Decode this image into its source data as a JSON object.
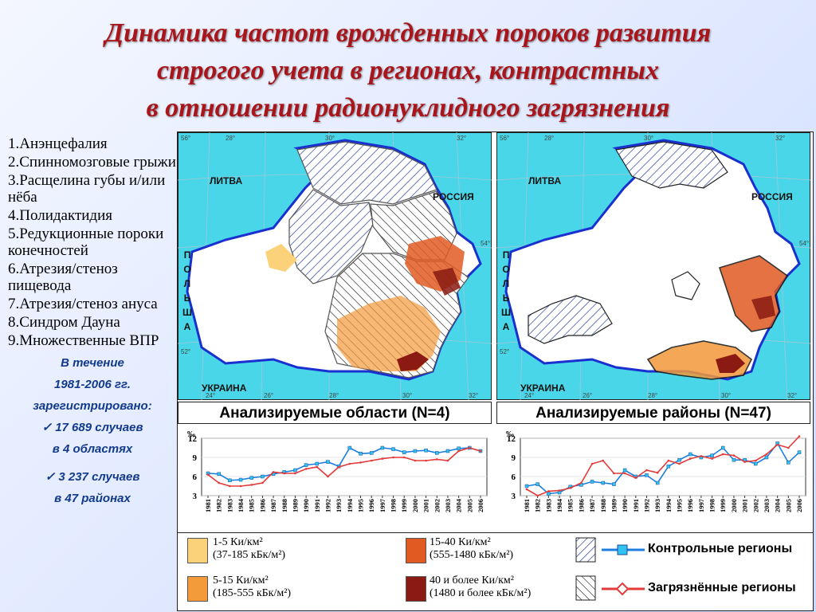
{
  "title": {
    "line1": "Динамика частот врожденных пороков развития",
    "line2": "строгого учета в регионах, контрастных",
    "line3": "в отношении радионуклидного загрязнения"
  },
  "defects": [
    "1.Анэнцефалия",
    "2.Спинномозговые грыжи",
    "3.Расщелина губы и/или нёба",
    "4.Полидактидия",
    "5.Редукционные пороки конечностей",
    "6.Атрезия/стеноз пищевода",
    "7.Атрезия/стеноз ануса",
    "8.Синдром Дауна",
    "9.Множественные ВПР"
  ],
  "notes": {
    "period1": "В течение",
    "period2": "1981-2006 гг.",
    "registered": "зарегистрировано:",
    "cases1": "✓ 17 689 случаев",
    "regions1": "в 4 областях",
    "cases2": "✓ 3 237 случаев",
    "regions2": "в 47 районах"
  },
  "maps": {
    "left_caption": "Анализируемые области (N=4)",
    "right_caption": "Анализируемые районы (N=47)",
    "label_lithuania": "ЛИТВА",
    "label_russia": "РОССИЯ",
    "label_poland": [
      "П",
      "О",
      "Л",
      "Ь",
      "Ш",
      "А"
    ],
    "label_ukraine": "УКРАИНА",
    "lon_labels": [
      "24°",
      "26°",
      "28°",
      "30°",
      "32°"
    ],
    "lat_labels": [
      "54°",
      "52°"
    ],
    "top_labels": [
      "56°",
      "28°",
      "30°",
      "32°"
    ]
  },
  "legend": {
    "c1a": "1-5 Ки/км²",
    "c1b": "(37-185 кБк/м²)",
    "c2a": "5-15 Ки/км²",
    "c2b": "(185-555 кБк/м²)",
    "c3a": "15-40 Ки/км²",
    "c3b": "(555-1480 кБк/м²)",
    "c4a": "40 и более Ки/км²",
    "c4b": "(1480 и более кБк/м²)",
    "control": "Контрольные регионы",
    "polluted": "Загрязнённые регионы",
    "colors": {
      "c1": "#fbd27a",
      "c2": "#f39a3a",
      "c3": "#e05a22",
      "c4": "#8a1a12",
      "control_line": "#1c7fe0",
      "control_marker": "#32c2f0",
      "polluted_line": "#e33a3a"
    }
  },
  "chart_data": [
    {
      "type": "line",
      "title": "",
      "ylabel": "‰",
      "xlabel": "",
      "ylim": [
        3,
        12
      ],
      "yticks": [
        3,
        6,
        9,
        12
      ],
      "x": [
        1981,
        1982,
        1983,
        1984,
        1985,
        1986,
        1987,
        1988,
        1989,
        1990,
        1991,
        1992,
        1993,
        1994,
        1995,
        1996,
        1997,
        1998,
        1999,
        2000,
        2001,
        2002,
        2003,
        2004,
        2005,
        2006
      ],
      "series": [
        {
          "name": "Контрольные регионы",
          "color": "#1c7fe0",
          "values": [
            6.5,
            6.4,
            5.4,
            5.5,
            5.8,
            6.0,
            6.4,
            6.7,
            7.0,
            7.8,
            8.0,
            8.3,
            7.6,
            10.5,
            9.6,
            9.7,
            10.5,
            10.3,
            9.8,
            10.0,
            10.1,
            9.7,
            10.0,
            10.4,
            10.5,
            10.0
          ]
        },
        {
          "name": "Загрязнённые регионы",
          "color": "#e33a3a",
          "values": [
            6.3,
            5.0,
            4.5,
            4.5,
            4.7,
            5.0,
            6.7,
            6.5,
            6.5,
            7.2,
            7.5,
            6.0,
            7.5,
            8.0,
            8.2,
            8.5,
            8.8,
            9.0,
            9.0,
            8.5,
            8.5,
            8.7,
            8.5,
            10.0,
            10.5,
            10.0
          ]
        }
      ]
    },
    {
      "type": "line",
      "title": "",
      "ylabel": "‰",
      "xlabel": "",
      "ylim": [
        3,
        12
      ],
      "yticks": [
        3,
        6,
        9,
        12
      ],
      "x": [
        1981,
        1982,
        1983,
        1984,
        1985,
        1986,
        1987,
        1988,
        1989,
        1990,
        1991,
        1992,
        1993,
        1994,
        1995,
        1996,
        1997,
        1998,
        1999,
        2000,
        2001,
        2002,
        2003,
        2004,
        2005,
        2006
      ],
      "series": [
        {
          "name": "Контрольные регионы",
          "color": "#1c7fe0",
          "values": [
            4.5,
            4.8,
            3.3,
            3.5,
            4.4,
            4.7,
            5.2,
            5.0,
            4.8,
            7.0,
            6.0,
            6.2,
            5.0,
            7.6,
            8.6,
            9.5,
            9.0,
            9.3,
            10.5,
            8.6,
            8.6,
            8.0,
            9.0,
            11.2,
            8.2,
            9.8
          ]
        },
        {
          "name": "Загрязнённые регионы",
          "color": "#e33a3a",
          "values": [
            4.0,
            3.0,
            3.7,
            3.8,
            4.2,
            5.0,
            8.0,
            8.5,
            6.5,
            6.5,
            5.8,
            7.0,
            6.6,
            8.5,
            8.0,
            8.8,
            9.2,
            8.8,
            9.5,
            9.3,
            8.3,
            8.5,
            9.5,
            11.0,
            10.5,
            12.3
          ]
        }
      ]
    }
  ]
}
